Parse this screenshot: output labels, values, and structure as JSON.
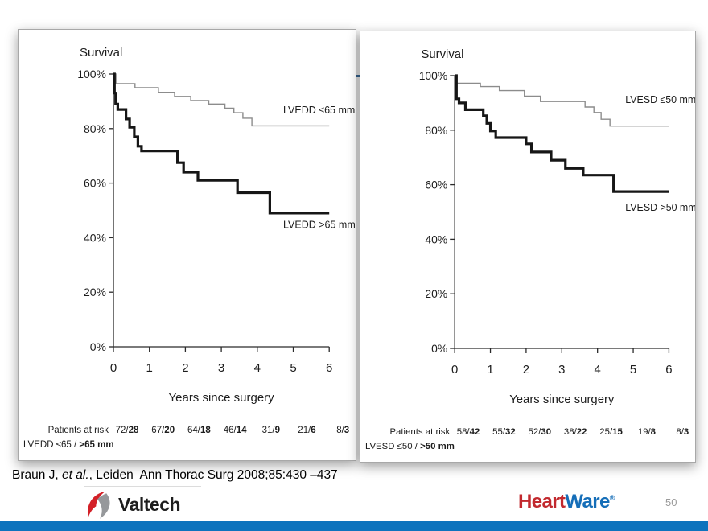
{
  "slide": {
    "citation": {
      "part1": "Braun J, ",
      "part2": "et al.",
      "part3": ", Leiden  Ann Thorac Surg 2008;85:430 –437"
    },
    "page_number": "50",
    "logos": {
      "valtech_text": "Valtech",
      "heartware_heart": "Heart",
      "heartware_ware": "Ware",
      "heartware_reg": "®"
    },
    "colors": {
      "bottom_bar": "#0d73bd",
      "divider": "#3a6e9f",
      "heart_red": "#c2292e",
      "ware_blue": "#156eb8",
      "valtech_red": "#d32027",
      "valtech_gray": "#96989b"
    }
  },
  "chart_data": [
    {
      "type": "line",
      "variant": "kaplan_meier_step",
      "title": "Survival",
      "xlabel": "Years since surgery",
      "ylabel": "Survival",
      "xlim": [
        0,
        6
      ],
      "ylim": [
        0,
        100
      ],
      "grid": false,
      "legend_position": "inline-labels",
      "xticks": [
        0,
        1,
        2,
        3,
        4,
        5,
        6
      ],
      "ytick_labels": [
        "0%",
        "20%",
        "40%",
        "60%",
        "80%",
        "100%"
      ],
      "series": [
        {
          "name": "LVEDD ≤65 mm",
          "style": "thin",
          "color": "#8c8c8c",
          "label_at": [
            4.72,
            85.5
          ],
          "points": [
            [
              0,
              100
            ],
            [
              0.07,
              96.5
            ],
            [
              0.6,
              95
            ],
            [
              1.25,
              93.3
            ],
            [
              1.7,
              91.8
            ],
            [
              2.15,
              90.3
            ],
            [
              2.65,
              89
            ],
            [
              3.1,
              87.5
            ],
            [
              3.35,
              85.8
            ],
            [
              3.6,
              83.8
            ],
            [
              3.85,
              81
            ],
            [
              6,
              81
            ]
          ]
        },
        {
          "name": "LVEDD >65 mm",
          "style": "thick",
          "color": "#161616",
          "label_at": [
            4.72,
            43.5
          ],
          "points": [
            [
              0,
              100
            ],
            [
              0.03,
              93
            ],
            [
              0.06,
              89
            ],
            [
              0.12,
              87
            ],
            [
              0.35,
              83.5
            ],
            [
              0.45,
              80.5
            ],
            [
              0.58,
              77
            ],
            [
              0.68,
              73.5
            ],
            [
              0.78,
              71.8
            ],
            [
              1.78,
              67.5
            ],
            [
              1.95,
              64
            ],
            [
              2.35,
              61
            ],
            [
              3.45,
              56.5
            ],
            [
              4.35,
              49
            ],
            [
              6,
              49
            ]
          ]
        }
      ],
      "at_risk": {
        "row_label": "Patients at risk",
        "group_normal": "LVEDD ≤65 / ",
        "group_bold": ">65 mm",
        "values": [
          [
            "72",
            "28"
          ],
          [
            "67",
            "20"
          ],
          [
            "64",
            "18"
          ],
          [
            "46",
            "14"
          ],
          [
            "31",
            "9"
          ],
          [
            "21",
            "6"
          ],
          [
            "8",
            "3"
          ]
        ]
      }
    },
    {
      "type": "line",
      "variant": "kaplan_meier_step",
      "title": "Survival",
      "xlabel": "Years since surgery",
      "ylabel": "Survival",
      "xlim": [
        0,
        6
      ],
      "ylim": [
        0,
        100
      ],
      "grid": false,
      "legend_position": "inline-labels",
      "xticks": [
        0,
        1,
        2,
        3,
        4,
        5,
        6
      ],
      "ytick_labels": [
        "0%",
        "20%",
        "40%",
        "60%",
        "80%",
        "100%"
      ],
      "series": [
        {
          "name": "LVESD ≤50 mm",
          "style": "thin",
          "color": "#8c8c8c",
          "label_at": [
            4.78,
            90
          ],
          "points": [
            [
              0,
              100
            ],
            [
              0.06,
              97.2
            ],
            [
              0.72,
              96
            ],
            [
              1.25,
              94.5
            ],
            [
              1.95,
              92.5
            ],
            [
              2.4,
              90.5
            ],
            [
              3.65,
              88.5
            ],
            [
              3.9,
              86.5
            ],
            [
              4.1,
              84
            ],
            [
              4.35,
              81.5
            ],
            [
              6,
              81.5
            ]
          ]
        },
        {
          "name": "LVESD >50 mm",
          "style": "thick",
          "color": "#161616",
          "label_at": [
            4.78,
            50.5
          ],
          "points": [
            [
              0,
              100
            ],
            [
              0.05,
              91.5
            ],
            [
              0.12,
              90
            ],
            [
              0.3,
              87.5
            ],
            [
              0.8,
              85.3
            ],
            [
              0.9,
              82.5
            ],
            [
              1.0,
              79.7
            ],
            [
              1.15,
              77.3
            ],
            [
              2.0,
              75
            ],
            [
              2.15,
              72
            ],
            [
              2.7,
              69
            ],
            [
              3.1,
              66
            ],
            [
              3.6,
              63.5
            ],
            [
              4.45,
              57.5
            ],
            [
              6,
              57.5
            ]
          ]
        }
      ],
      "at_risk": {
        "row_label": "Patients at risk",
        "group_normal": "LVESD ≤50 / ",
        "group_bold": ">50 mm",
        "values": [
          [
            "58",
            "42"
          ],
          [
            "55",
            "32"
          ],
          [
            "52",
            "30"
          ],
          [
            "38",
            "22"
          ],
          [
            "25",
            "15"
          ],
          [
            "19",
            "8"
          ],
          [
            "8",
            "3"
          ]
        ]
      }
    }
  ]
}
